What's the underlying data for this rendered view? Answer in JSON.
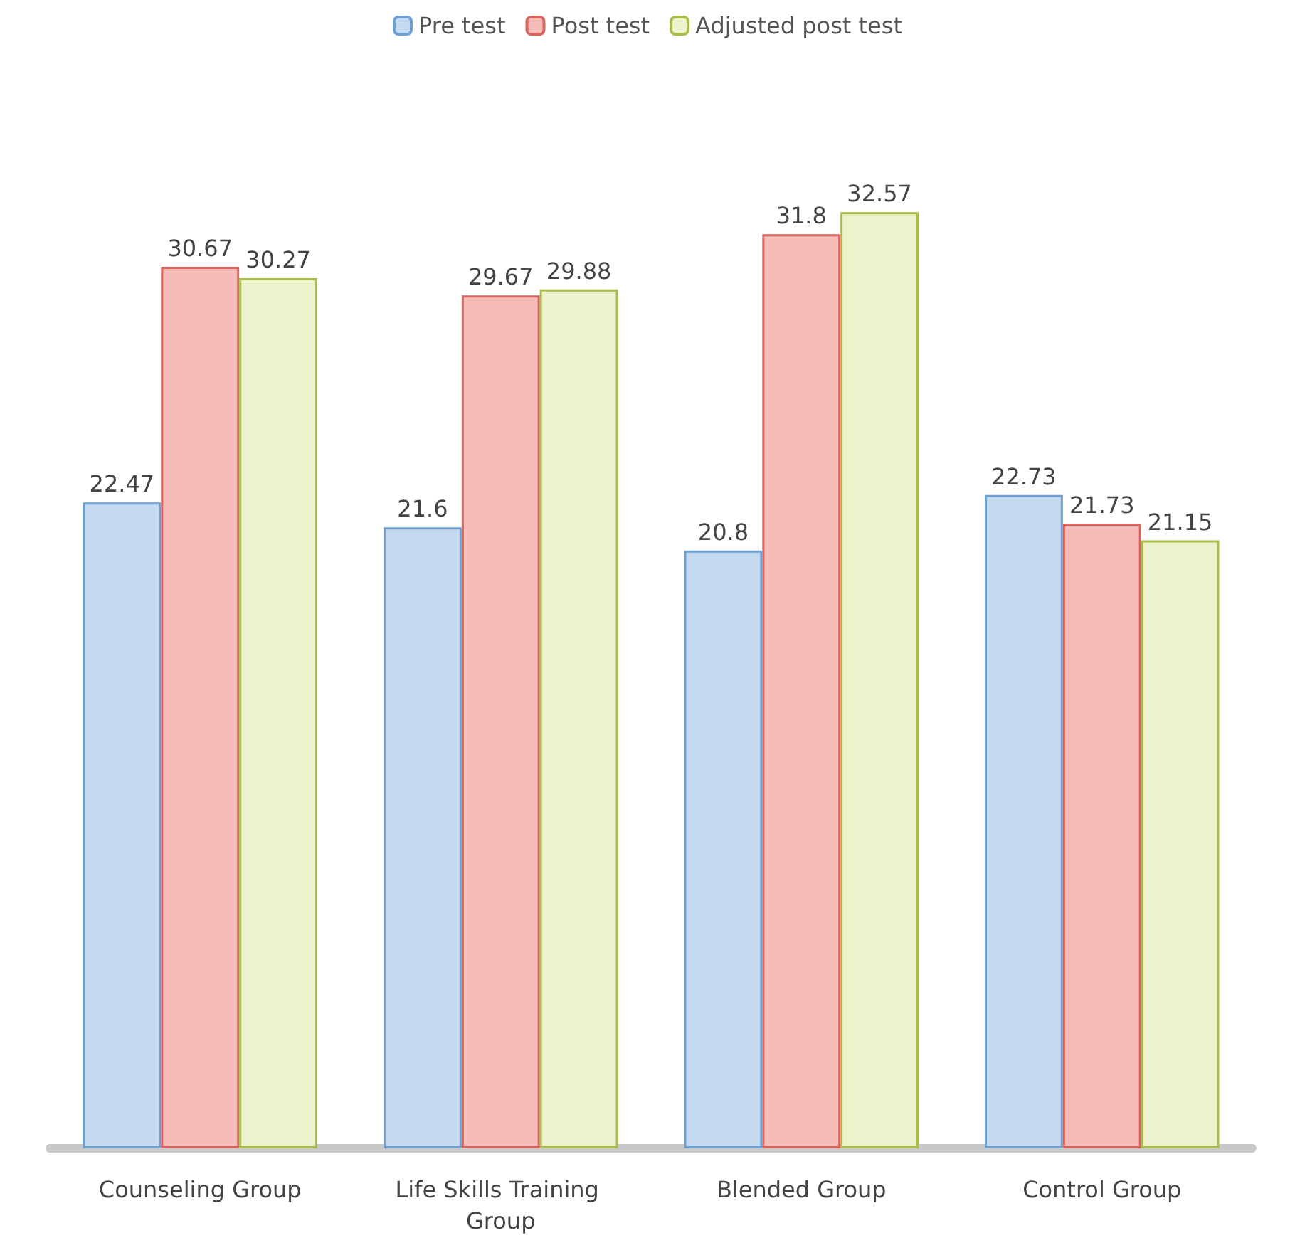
{
  "chart_data": {
    "type": "bar",
    "categories": [
      "Counseling Group",
      "Life Skills Training Group",
      "Blended Group",
      "Control Group"
    ],
    "series": [
      {
        "name": "Pre test",
        "color": "#c3daf0",
        "values": [
          22.47,
          21.6,
          20.8,
          22.73
        ]
      },
      {
        "name": "Post test",
        "color": "#f5bcb8",
        "values": [
          30.67,
          29.67,
          31.8,
          21.73
        ]
      },
      {
        "name": "Adjusted post test",
        "color": "#eef2cc",
        "values": [
          30.27,
          29.88,
          32.57,
          21.15
        ]
      }
    ],
    "data_labels": true,
    "legend": "top",
    "grid": false
  }
}
